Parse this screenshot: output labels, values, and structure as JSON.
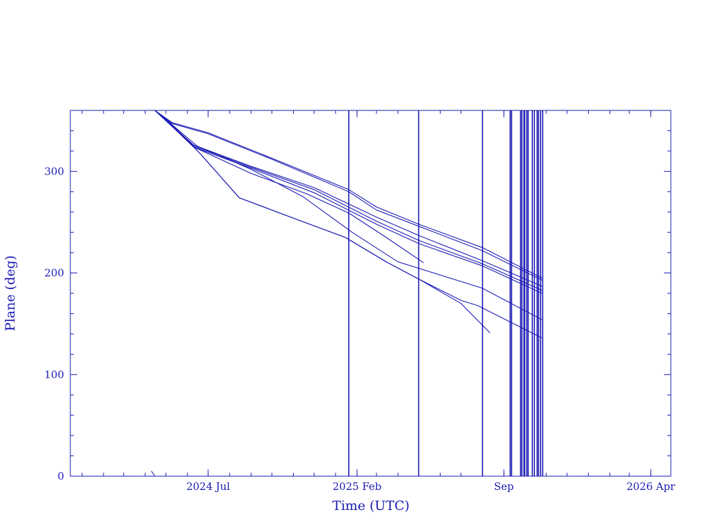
{
  "chart_data": {
    "type": "line",
    "title": "",
    "xlabel": "Time (UTC)",
    "ylabel": "Plane (deg)",
    "xlim": [
      "2023-12-15",
      "2026-04-30"
    ],
    "ylim": [
      0,
      360
    ],
    "grid": false,
    "color": "#1a1ab4",
    "x_ticks": [
      {
        "date": "2024-07-01",
        "label": "2024 Jul"
      },
      {
        "date": "2025-02-01",
        "label": "2025 Feb"
      },
      {
        "date": "2025-09-01",
        "label": "Sep"
      },
      {
        "date": "2026-04-01",
        "label": "2026 Apr"
      }
    ],
    "y_ticks": [
      0,
      100,
      200,
      300
    ],
    "series": [
      {
        "x": [
          "2024-04-15",
          "2024-05-10",
          "2024-07-01",
          "2024-10-01",
          "2025-01-20",
          "2025-03-01",
          "2025-05-01",
          "2025-08-01",
          "2025-10-26"
        ],
        "y": [
          360,
          348,
          338,
          313,
          282,
          265,
          248,
          225,
          195
        ]
      },
      {
        "x": [
          "2024-04-15",
          "2024-05-10",
          "2024-07-01",
          "2024-10-01",
          "2025-01-20",
          "2025-03-01",
          "2025-05-01",
          "2025-08-01",
          "2025-10-26"
        ],
        "y": [
          360,
          347,
          337,
          312,
          280,
          262,
          246,
          222,
          193
        ]
      },
      {
        "x": [
          "2024-04-15",
          "2024-05-15",
          "2024-06-10",
          "2024-09-01",
          "2024-12-01",
          "2025-03-01",
          "2025-05-01",
          "2025-08-01",
          "2025-10-26"
        ],
        "y": [
          360,
          342,
          326,
          305,
          284,
          255,
          237,
          212,
          187
        ]
      },
      {
        "x": [
          "2024-04-15",
          "2024-05-15",
          "2024-06-10",
          "2024-09-01",
          "2024-12-01",
          "2025-03-01",
          "2025-05-01",
          "2025-08-01",
          "2025-10-26"
        ],
        "y": [
          360,
          342,
          325,
          304,
          282,
          251,
          232,
          209,
          183
        ]
      },
      {
        "x": [
          "2024-04-15",
          "2024-05-15",
          "2024-06-10",
          "2024-09-01",
          "2024-12-01",
          "2025-03-01",
          "2025-05-01",
          "2025-08-01",
          "2025-10-26"
        ],
        "y": [
          360,
          341,
          324,
          303,
          279,
          248,
          229,
          207,
          180
        ]
      },
      {
        "x": [
          "2024-04-15",
          "2024-05-15",
          "2024-06-10",
          "2024-09-01",
          "2024-11-20",
          "2025-01-20",
          "2025-03-15",
          "2025-05-08"
        ],
        "y": [
          360,
          341,
          324,
          298,
          278,
          259,
          235,
          210
        ]
      },
      {
        "x": [
          "2024-04-15",
          "2024-05-15",
          "2024-06-15",
          "2024-09-01",
          "2024-11-15",
          "2025-01-25",
          "2025-04-01",
          "2025-08-01",
          "2025-10-26"
        ],
        "y": [
          360,
          343,
          325,
          302,
          275,
          240,
          211,
          185,
          154
        ]
      },
      {
        "x": [
          "2024-04-15",
          "2024-05-15",
          "2024-06-20",
          "2024-08-15",
          "2024-11-01",
          "2025-01-15",
          "2025-03-15",
          "2025-05-01",
          "2025-07-01",
          "2025-07-25",
          "2025-10-26"
        ],
        "y": [
          360,
          342,
          317,
          274,
          254,
          235,
          211,
          194,
          173,
          168,
          136
        ]
      },
      {
        "x": [
          "2024-04-15",
          "2024-05-15",
          "2024-06-20",
          "2024-08-15",
          "2024-11-01",
          "2025-01-15",
          "2025-03-15",
          "2025-05-01",
          "2025-07-01",
          "2025-08-12"
        ],
        "y": [
          360,
          342,
          317,
          274,
          254,
          235,
          211,
          194,
          170,
          141
        ]
      },
      {
        "x": [
          "2024-04-10",
          "2024-04-15"
        ],
        "y": [
          5,
          0
        ]
      }
    ],
    "vertical_lines": [
      "2025-01-20",
      "2025-05-01",
      "2025-08-01",
      "2025-09-10",
      "2025-09-12",
      "2025-09-25",
      "2025-09-27",
      "2025-09-30",
      "2025-10-01",
      "2025-10-04",
      "2025-10-06",
      "2025-10-12",
      "2025-10-15",
      "2025-10-19",
      "2025-10-21",
      "2025-10-24",
      "2025-10-27"
    ]
  }
}
